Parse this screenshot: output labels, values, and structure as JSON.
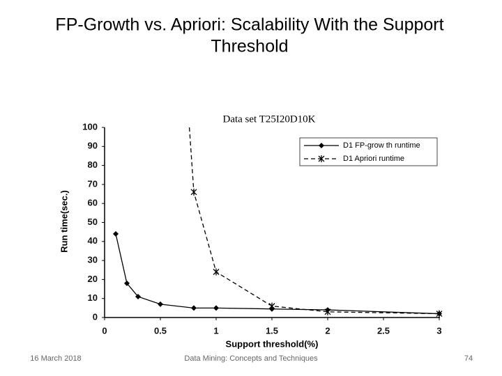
{
  "title_lines": [
    "FP-Growth vs. Apriori: Scalability With the Support",
    "Threshold"
  ],
  "footer": {
    "date": "16 March 2018",
    "center": "Data Mining: Concepts and Techniques",
    "page": "74"
  },
  "chart_data": {
    "type": "line",
    "title": "Data set T25I20D10K",
    "x_label": "Support threshold(%)",
    "y_label": "Run time(sec.)",
    "xlim": [
      0,
      3
    ],
    "xticks": [
      0,
      0.5,
      1,
      1.5,
      2,
      2.5,
      3
    ],
    "ylim": [
      0,
      100
    ],
    "yticks": [
      0,
      10,
      20,
      30,
      40,
      50,
      60,
      70,
      80,
      90,
      100
    ],
    "grid": false,
    "legend": "upper right",
    "series": [
      {
        "name": "D1 FP-grow th runtime",
        "color": "#000000",
        "style": "solid",
        "marker": "diamond",
        "x": [
          0.1,
          0.2,
          0.3,
          0.5,
          0.8,
          1,
          1.5,
          2,
          3
        ],
        "values": [
          44,
          18,
          11,
          7,
          5,
          5,
          4.5,
          4,
          2
        ]
      },
      {
        "name": "D1 Apriori runtime",
        "color": "#000000",
        "style": "dashed",
        "marker": "star",
        "x": [
          0.76,
          0.8,
          1,
          1.5,
          2,
          3
        ],
        "values": [
          100,
          66,
          24,
          6,
          3,
          2
        ]
      }
    ]
  }
}
